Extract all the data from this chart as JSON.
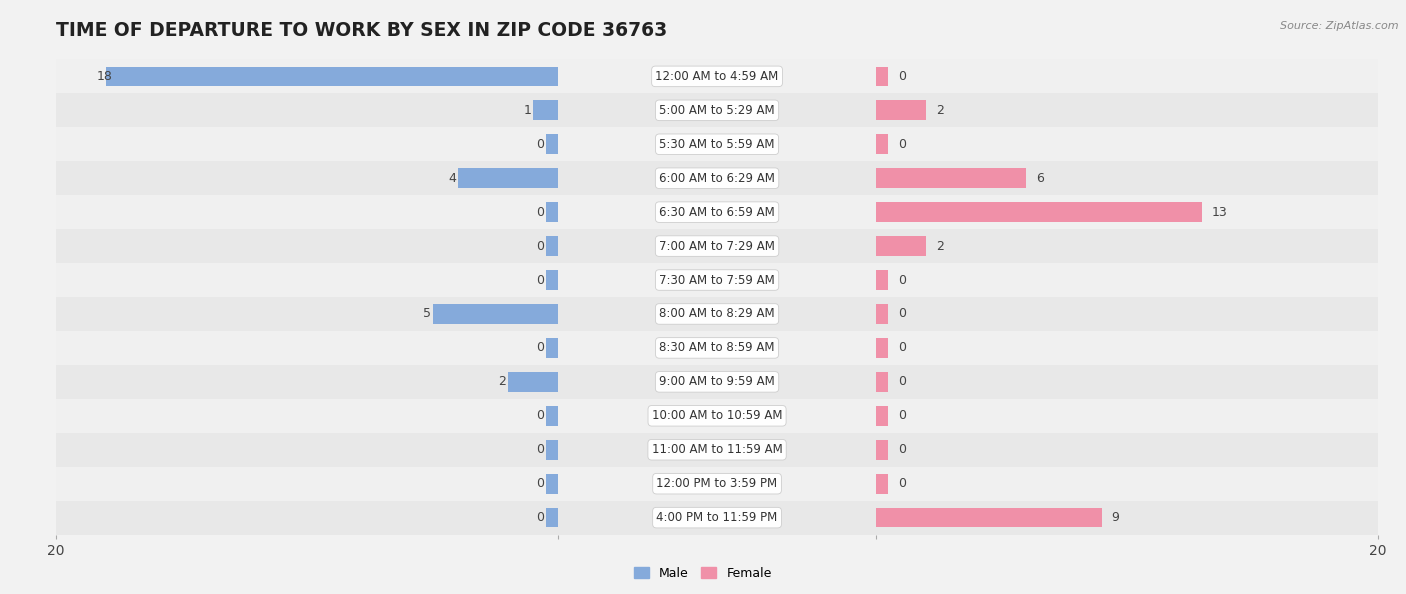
{
  "title": "TIME OF DEPARTURE TO WORK BY SEX IN ZIP CODE 36763",
  "source": "Source: ZipAtlas.com",
  "categories": [
    "12:00 AM to 4:59 AM",
    "5:00 AM to 5:29 AM",
    "5:30 AM to 5:59 AM",
    "6:00 AM to 6:29 AM",
    "6:30 AM to 6:59 AM",
    "7:00 AM to 7:29 AM",
    "7:30 AM to 7:59 AM",
    "8:00 AM to 8:29 AM",
    "8:30 AM to 8:59 AM",
    "9:00 AM to 9:59 AM",
    "10:00 AM to 10:59 AM",
    "11:00 AM to 11:59 AM",
    "12:00 PM to 3:59 PM",
    "4:00 PM to 11:59 PM"
  ],
  "male_values": [
    18,
    1,
    0,
    4,
    0,
    0,
    0,
    5,
    0,
    2,
    0,
    0,
    0,
    0
  ],
  "female_values": [
    0,
    2,
    0,
    6,
    13,
    2,
    0,
    0,
    0,
    0,
    0,
    0,
    0,
    9
  ],
  "male_color": "#85AADB",
  "female_color": "#F090A8",
  "row_colors": [
    "#f0f0f0",
    "#e8e8e8"
  ],
  "xlim": 20,
  "title_color": "#222222",
  "title_fontsize": 13.5,
  "value_fontsize": 9,
  "cat_fontsize": 8.5,
  "tick_fontsize": 10,
  "source_fontsize": 8
}
